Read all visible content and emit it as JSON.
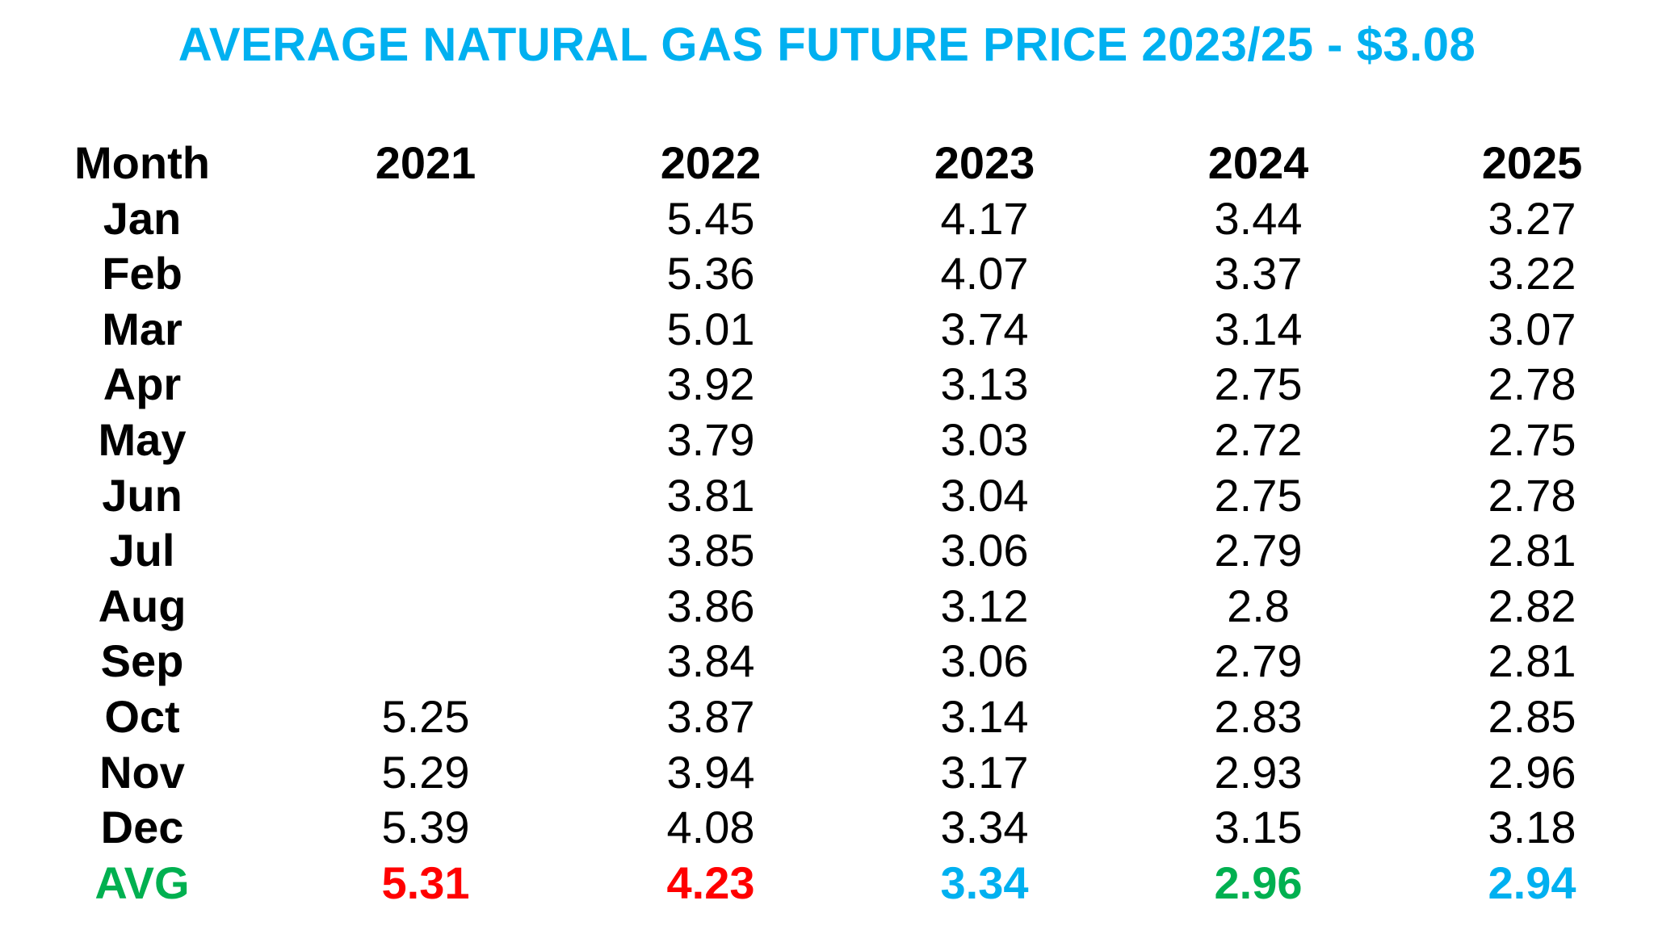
{
  "title": "AVERAGE NATURAL GAS FUTURE PRICE 2023/25 - $3.08",
  "table": {
    "headers": [
      "Month",
      "2021",
      "2022",
      "2023",
      "2024",
      "2025"
    ],
    "rows": [
      {
        "month": "Jan",
        "values": [
          "",
          "5.45",
          "4.17",
          "3.44",
          "3.27"
        ]
      },
      {
        "month": "Feb",
        "values": [
          "",
          "5.36",
          "4.07",
          "3.37",
          "3.22"
        ]
      },
      {
        "month": "Mar",
        "values": [
          "",
          "5.01",
          "3.74",
          "3.14",
          "3.07"
        ]
      },
      {
        "month": "Apr",
        "values": [
          "",
          "3.92",
          "3.13",
          "2.75",
          "2.78"
        ]
      },
      {
        "month": "May",
        "values": [
          "",
          "3.79",
          "3.03",
          "2.72",
          "2.75"
        ]
      },
      {
        "month": "Jun",
        "values": [
          "",
          "3.81",
          "3.04",
          "2.75",
          "2.78"
        ]
      },
      {
        "month": "Jul",
        "values": [
          "",
          "3.85",
          "3.06",
          "2.79",
          "2.81"
        ]
      },
      {
        "month": "Aug",
        "values": [
          "",
          "3.86",
          "3.12",
          "2.8",
          "2.82"
        ]
      },
      {
        "month": "Sep",
        "values": [
          "",
          "3.84",
          "3.06",
          "2.79",
          "2.81"
        ]
      },
      {
        "month": "Oct",
        "values": [
          "5.25",
          "3.87",
          "3.14",
          "2.83",
          "2.85"
        ]
      },
      {
        "month": "Nov",
        "values": [
          "5.29",
          "3.94",
          "3.17",
          "2.93",
          "2.96"
        ]
      },
      {
        "month": "Dec",
        "values": [
          "5.39",
          "4.08",
          "3.34",
          "3.15",
          "3.18"
        ]
      }
    ],
    "avg": {
      "label": "AVG",
      "values": [
        "5.31",
        "4.23",
        "3.34",
        "2.96",
        "2.94"
      ]
    }
  },
  "colors": {
    "title": "#00b0f0",
    "text": "#000000",
    "avg_label": "#00b050",
    "avg_values": [
      "#ff0000",
      "#ff0000",
      "#00b0f0",
      "#00b050",
      "#00b0f0"
    ]
  }
}
